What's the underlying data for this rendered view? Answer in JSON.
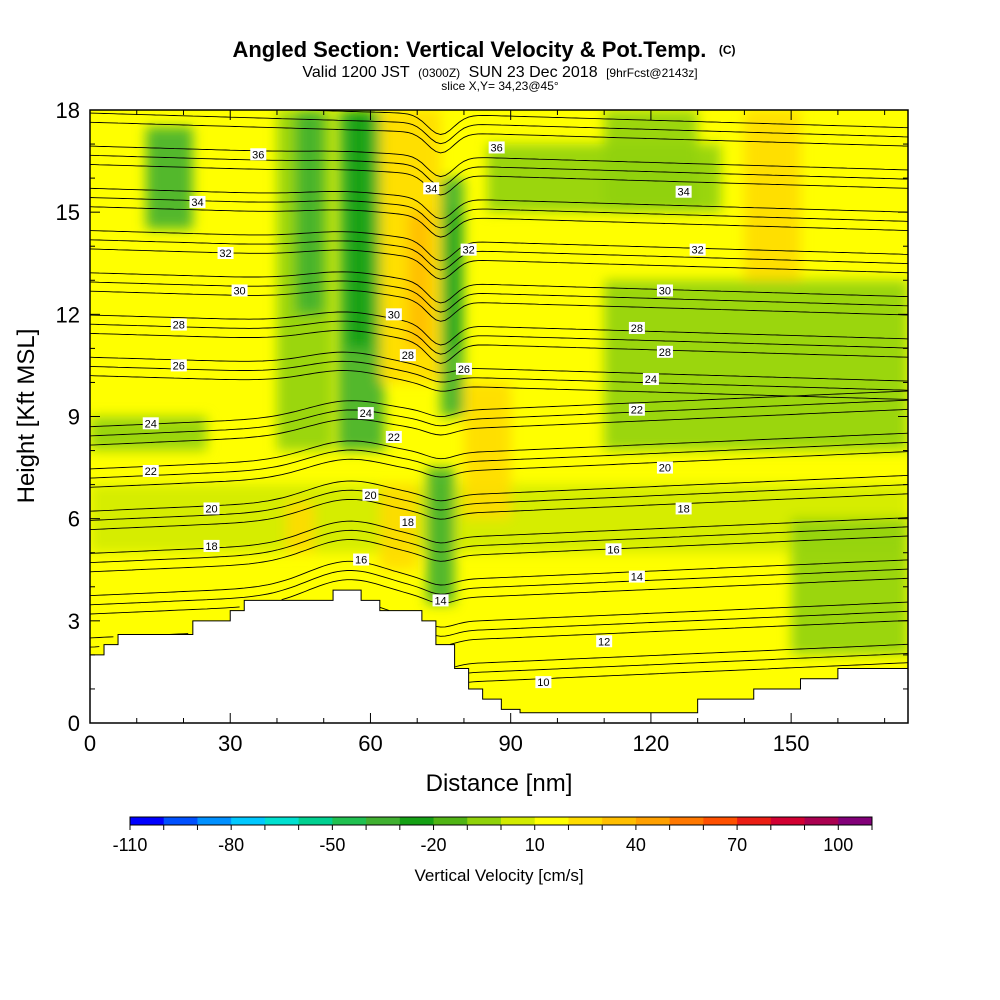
{
  "titles": {
    "main": "Angled Section: Vertical Velocity & Pot.Temp.",
    "main_units": "(C)",
    "valid_prefix": "Valid 1200 JST",
    "valid_utc": "(0300Z)",
    "valid_date": "SUN 23 Dec 2018",
    "forecast": "[9hrFcst@2143z]",
    "slice": "slice X,Y= 34,23@45°"
  },
  "chart_data": {
    "type": "heatmap",
    "xlabel": "Distance [nm]",
    "ylabel": "Height [Kft MSL]",
    "xlim": [
      0,
      175
    ],
    "ylim": [
      0,
      18
    ],
    "x_ticks": [
      0,
      30,
      60,
      90,
      120,
      150
    ],
    "y_ticks": [
      0,
      3,
      6,
      9,
      12,
      15,
      18
    ],
    "x_minor_step": 10,
    "y_minor_step": 1,
    "colorbar": {
      "title": "Vertical Velocity [cm/s]",
      "min": -110,
      "max": 110,
      "step": 10,
      "labels": [
        -110,
        -80,
        -50,
        -20,
        10,
        40,
        70,
        100
      ],
      "colors": [
        "#0000ff",
        "#0050ff",
        "#0090ff",
        "#00c8ff",
        "#00e0d0",
        "#00d090",
        "#20c050",
        "#40b030",
        "#14a014",
        "#50b414",
        "#90d20a",
        "#d2eb00",
        "#ffff00",
        "#ffdc00",
        "#ffbe00",
        "#ffa000",
        "#ff7800",
        "#ff5000",
        "#eb1e14",
        "#d20032",
        "#aa0050",
        "#820078"
      ]
    },
    "terrain_profile": [
      [
        0,
        2.0
      ],
      [
        3,
        2.0
      ],
      [
        3,
        2.3
      ],
      [
        6,
        2.3
      ],
      [
        6,
        2.6
      ],
      [
        10,
        2.6
      ],
      [
        10,
        2.6
      ],
      [
        22,
        2.6
      ],
      [
        22,
        3.0
      ],
      [
        30,
        3.0
      ],
      [
        30,
        3.3
      ],
      [
        33,
        3.3
      ],
      [
        33,
        3.6
      ],
      [
        52,
        3.6
      ],
      [
        52,
        3.9
      ],
      [
        58,
        3.9
      ],
      [
        58,
        3.6
      ],
      [
        62,
        3.6
      ],
      [
        62,
        3.3
      ],
      [
        71,
        3.3
      ],
      [
        71,
        3.0
      ],
      [
        74,
        3.0
      ],
      [
        74,
        2.3
      ],
      [
        78,
        2.3
      ],
      [
        78,
        1.6
      ],
      [
        81,
        1.6
      ],
      [
        81,
        1.0
      ],
      [
        84,
        1.0
      ],
      [
        84,
        0.7
      ],
      [
        88,
        0.7
      ],
      [
        88,
        0.4
      ],
      [
        92,
        0.4
      ],
      [
        92,
        0.3
      ],
      [
        130,
        0.3
      ],
      [
        130,
        0.7
      ],
      [
        142,
        0.7
      ],
      [
        142,
        1.0
      ],
      [
        152,
        1.0
      ],
      [
        152,
        1.3
      ],
      [
        160,
        1.3
      ],
      [
        160,
        1.6
      ],
      [
        175,
        1.6
      ]
    ],
    "theta_contours": [
      10,
      12,
      14,
      16,
      18,
      20,
      22,
      24,
      26,
      28,
      30,
      32,
      34,
      36
    ],
    "contour_labels": [
      {
        "text": "36",
        "x": 36,
        "y": 16.7
      },
      {
        "text": "36",
        "x": 87,
        "y": 16.9
      },
      {
        "text": "34",
        "x": 23,
        "y": 15.3
      },
      {
        "text": "34",
        "x": 73,
        "y": 15.7
      },
      {
        "text": "34",
        "x": 127,
        "y": 15.6
      },
      {
        "text": "32",
        "x": 29,
        "y": 13.8
      },
      {
        "text": "32",
        "x": 81,
        "y": 13.9
      },
      {
        "text": "32",
        "x": 130,
        "y": 13.9
      },
      {
        "text": "30",
        "x": 32,
        "y": 12.7
      },
      {
        "text": "30",
        "x": 65,
        "y": 12.0
      },
      {
        "text": "30",
        "x": 123,
        "y": 12.7
      },
      {
        "text": "28",
        "x": 19,
        "y": 11.7
      },
      {
        "text": "28",
        "x": 68,
        "y": 10.8
      },
      {
        "text": "28",
        "x": 117,
        "y": 11.6
      },
      {
        "text": "28",
        "x": 123,
        "y": 10.9
      },
      {
        "text": "26",
        "x": 19,
        "y": 10.5
      },
      {
        "text": "26",
        "x": 80,
        "y": 10.4
      },
      {
        "text": "24",
        "x": 13,
        "y": 8.8
      },
      {
        "text": "24",
        "x": 59,
        "y": 9.1
      },
      {
        "text": "24",
        "x": 120,
        "y": 10.1
      },
      {
        "text": "22",
        "x": 13,
        "y": 7.4
      },
      {
        "text": "22",
        "x": 65,
        "y": 8.4
      },
      {
        "text": "22",
        "x": 117,
        "y": 9.2
      },
      {
        "text": "20",
        "x": 26,
        "y": 6.3
      },
      {
        "text": "20",
        "x": 60,
        "y": 6.7
      },
      {
        "text": "20",
        "x": 123,
        "y": 7.5
      },
      {
        "text": "18",
        "x": 26,
        "y": 5.2
      },
      {
        "text": "18",
        "x": 68,
        "y": 5.9
      },
      {
        "text": "18",
        "x": 127,
        "y": 6.3
      },
      {
        "text": "16",
        "x": 58,
        "y": 4.8
      },
      {
        "text": "16",
        "x": 112,
        "y": 5.1
      },
      {
        "text": "14",
        "x": 75,
        "y": 3.6
      },
      {
        "text": "14",
        "x": 117,
        "y": 4.3
      },
      {
        "text": "12",
        "x": 110,
        "y": 2.4
      },
      {
        "text": "10",
        "x": 97,
        "y": 1.2
      }
    ]
  }
}
